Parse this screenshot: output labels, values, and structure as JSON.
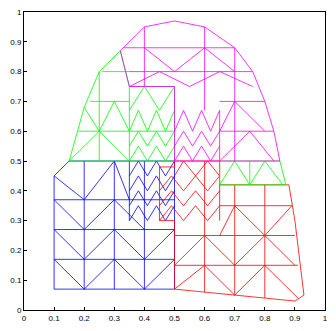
{
  "chart_data": {
    "type": "line",
    "xlim": [
      0,
      1
    ],
    "ylim": [
      0,
      1
    ],
    "xticks": [
      0,
      0.1,
      0.2,
      0.3,
      0.4,
      0.5,
      0.6,
      0.7,
      0.8,
      0.9,
      1
    ],
    "yticks": [
      0,
      0.1,
      0.2,
      0.3,
      0.4,
      0.5,
      0.6,
      0.7,
      0.8,
      0.9,
      1
    ],
    "grid": false,
    "series": [
      {
        "color": "#0000ff",
        "x": [
          0.1,
          0.5,
          0.5,
          0.15,
          0.1,
          0.1,
          null,
          0.1,
          0.5,
          null,
          0.1,
          0.5,
          null,
          0.1,
          0.5,
          null,
          0.2,
          0.2,
          null,
          0.3,
          0.3,
          null,
          0.4,
          0.4,
          null,
          0.1,
          0.2,
          0.3,
          0.4,
          0.5,
          null,
          0.1,
          0.2,
          0.3,
          0.4,
          0.5,
          null,
          0.1,
          0.2,
          0.3,
          0.4,
          null,
          0.1,
          0.2,
          0.3,
          0.35,
          null,
          0.35,
          0.38,
          0.41,
          0.44,
          0.47,
          0.5,
          null,
          0.35,
          0.38,
          0.41,
          0.44,
          0.47,
          0.5,
          null,
          0.35,
          0.38,
          0.41,
          0.44,
          0.47,
          0.5,
          null,
          0.35,
          0.38,
          0.41,
          0.44,
          0.47,
          0.5,
          null,
          0.35,
          0.35
        ],
        "y": [
          0.07,
          0.07,
          0.5,
          0.5,
          0.45,
          0.07,
          null,
          0.17,
          0.17,
          null,
          0.27,
          0.27,
          null,
          0.37,
          0.37,
          null,
          0.07,
          0.5,
          null,
          0.07,
          0.5,
          null,
          0.07,
          0.5,
          null,
          0.17,
          0.07,
          0.17,
          0.07,
          0.17,
          null,
          0.27,
          0.17,
          0.27,
          0.17,
          0.27,
          null,
          0.37,
          0.27,
          0.37,
          0.27,
          null,
          0.45,
          0.37,
          0.5,
          0.37,
          null,
          0.3,
          0.35,
          0.3,
          0.35,
          0.3,
          0.35,
          null,
          0.35,
          0.4,
          0.35,
          0.4,
          0.35,
          0.4,
          null,
          0.4,
          0.45,
          0.4,
          0.45,
          0.4,
          0.45,
          null,
          0.45,
          0.5,
          0.45,
          0.5,
          0.45,
          0.5,
          null,
          0.3,
          0.5
        ]
      },
      {
        "color": "#ff0000",
        "x": [
          0.5,
          0.9,
          0.93,
          0.9,
          0.88,
          0.65,
          0.65,
          0.5,
          0.5,
          0.45,
          0.45,
          0.5,
          0.5,
          null,
          0.5,
          0.91,
          null,
          0.5,
          0.9,
          null,
          0.65,
          0.89,
          null,
          0.6,
          0.6,
          null,
          0.7,
          0.7,
          null,
          0.8,
          0.8,
          null,
          0.5,
          0.6,
          0.7,
          0.8,
          0.91,
          null,
          0.5,
          0.6,
          0.7,
          0.8,
          0.9,
          null,
          0.65,
          0.7,
          0.8,
          0.89,
          null,
          0.45,
          0.49,
          0.53,
          0.57,
          0.61,
          0.65,
          null,
          0.45,
          0.49,
          0.53,
          0.57,
          0.61,
          0.65,
          null,
          0.45,
          0.49,
          0.53,
          0.57,
          0.61,
          0.65,
          null,
          0.5,
          0.53,
          0.57,
          0.61,
          0.65,
          null,
          0.65,
          0.65
        ],
        "y": [
          0.07,
          0.03,
          0.05,
          0.3,
          0.42,
          0.42,
          0.5,
          0.5,
          0.48,
          0.48,
          0.3,
          0.3,
          0.07,
          null,
          0.15,
          0.15,
          null,
          0.25,
          0.25,
          null,
          0.35,
          0.35,
          null,
          0.06,
          0.5,
          null,
          0.05,
          0.42,
          null,
          0.04,
          0.42,
          null,
          0.07,
          0.15,
          0.05,
          0.15,
          0.04,
          null,
          0.15,
          0.25,
          0.15,
          0.25,
          0.15,
          null,
          0.25,
          0.35,
          0.25,
          0.35,
          null,
          0.3,
          0.35,
          0.3,
          0.35,
          0.3,
          0.35,
          null,
          0.35,
          0.4,
          0.35,
          0.4,
          0.35,
          0.4,
          null,
          0.4,
          0.45,
          0.4,
          0.45,
          0.4,
          0.45,
          null,
          0.45,
          0.5,
          0.45,
          0.5,
          0.45,
          null,
          0.3,
          0.42
        ]
      },
      {
        "color": "#00ff00",
        "x": [
          0.15,
          0.5,
          0.5,
          0.35,
          0.32,
          0.25,
          0.2,
          0.15,
          null,
          0.18,
          0.5,
          null,
          0.22,
          0.35,
          null,
          0.26,
          0.35,
          null,
          0.25,
          0.25,
          null,
          0.35,
          0.35,
          null,
          0.15,
          0.25,
          0.35,
          null,
          0.2,
          0.25,
          0.3,
          0.35,
          null,
          0.35,
          0.38,
          0.41,
          0.44,
          0.47,
          0.5,
          null,
          0.35,
          0.38,
          0.41,
          0.44,
          0.47,
          0.5,
          null,
          0.35,
          0.38,
          0.41,
          0.44,
          0.47,
          0.5,
          null,
          0.35,
          0.4,
          0.45,
          0.5,
          null,
          0.65,
          0.87,
          0.85,
          0.65,
          0.65,
          null,
          0.65,
          0.7,
          0.75,
          0.8,
          0.86,
          null,
          0.75,
          0.75
        ],
        "y": [
          0.5,
          0.5,
          0.75,
          0.75,
          0.87,
          0.8,
          0.68,
          0.5,
          null,
          0.6,
          0.6,
          null,
          0.7,
          0.7,
          null,
          0.8,
          0.8,
          null,
          0.5,
          0.8,
          null,
          0.5,
          0.75,
          null,
          0.5,
          0.6,
          0.5,
          null,
          0.68,
          0.6,
          0.7,
          0.6,
          null,
          0.5,
          0.55,
          0.5,
          0.55,
          0.5,
          0.55,
          null,
          0.55,
          0.6,
          0.55,
          0.6,
          0.55,
          0.6,
          null,
          0.6,
          0.67,
          0.6,
          0.67,
          0.6,
          0.67,
          null,
          0.67,
          0.75,
          0.67,
          0.75,
          null,
          0.42,
          0.42,
          0.5,
          0.5,
          0.42,
          null,
          0.42,
          0.5,
          0.42,
          0.5,
          0.42,
          null,
          0.42,
          0.5
        ]
      },
      {
        "color": "#ff00ff",
        "x": [
          0.5,
          0.85,
          0.83,
          0.8,
          0.76,
          0.7,
          0.6,
          0.5,
          0.4,
          0.32,
          0.35,
          0.5,
          0.5,
          null,
          0.65,
          0.83,
          null,
          0.65,
          0.8,
          null,
          0.35,
          0.76,
          null,
          0.33,
          0.7,
          null,
          0.6,
          0.6,
          null,
          0.7,
          0.7,
          null,
          0.4,
          0.4,
          null,
          0.65,
          0.75,
          0.83,
          null,
          0.65,
          0.7,
          0.8,
          null,
          0.35,
          0.45,
          0.55,
          0.65,
          0.76,
          null,
          0.4,
          0.5,
          0.6,
          0.7,
          null,
          0.5,
          0.53,
          0.56,
          0.59,
          0.62,
          0.65,
          null,
          0.5,
          0.53,
          0.56,
          0.59,
          0.62,
          0.65,
          null,
          0.5,
          0.53,
          0.56,
          0.59,
          0.62,
          0.65,
          null,
          0.65,
          0.65
        ],
        "y": [
          0.5,
          0.5,
          0.6,
          0.7,
          0.8,
          0.88,
          0.95,
          0.97,
          0.95,
          0.87,
          0.75,
          0.75,
          0.5,
          null,
          0.6,
          0.6,
          null,
          0.7,
          0.7,
          null,
          0.8,
          0.8,
          null,
          0.88,
          0.88,
          null,
          0.67,
          0.95,
          null,
          0.5,
          0.88,
          null,
          0.75,
          0.95,
          null,
          0.5,
          0.6,
          0.5,
          null,
          0.6,
          0.7,
          0.6,
          null,
          0.75,
          0.8,
          0.75,
          0.8,
          0.75,
          null,
          0.88,
          0.8,
          0.88,
          0.8,
          null,
          0.5,
          0.55,
          0.5,
          0.55,
          0.5,
          0.55,
          null,
          0.55,
          0.6,
          0.55,
          0.6,
          0.55,
          0.6,
          null,
          0.6,
          0.67,
          0.6,
          0.67,
          0.6,
          0.67,
          null,
          0.5,
          0.67
        ]
      }
    ]
  }
}
